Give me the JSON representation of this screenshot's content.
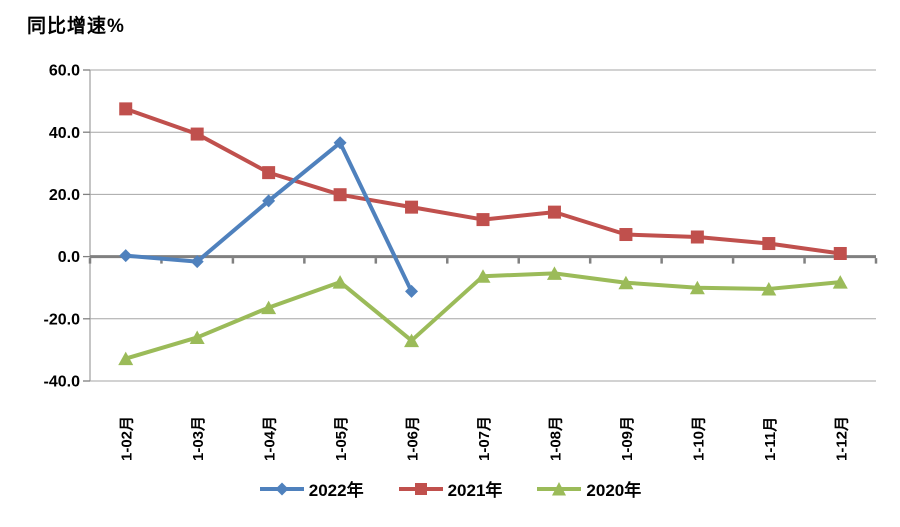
{
  "chart_data": {
    "type": "line",
    "title": "同比增速%",
    "categories": [
      "1-02月",
      "1-03月",
      "1-04月",
      "1-05月",
      "1-06月",
      "1-07月",
      "1-08月",
      "1-09月",
      "1-10月",
      "1-11月",
      "1-12月"
    ],
    "series": [
      {
        "name": "2022年",
        "color": "#4F81BD",
        "marker": "diamond",
        "values": [
          0.3,
          -1.6,
          17.9,
          36.6,
          -11.2,
          null,
          null,
          null,
          null,
          null,
          null
        ]
      },
      {
        "name": "2021年",
        "color": "#C0504D",
        "marker": "square",
        "values": [
          47.5,
          39.4,
          27.0,
          19.9,
          15.9,
          11.9,
          14.3,
          7.1,
          6.3,
          4.2,
          1.0
        ]
      },
      {
        "name": "2020年",
        "color": "#9BBB59",
        "marker": "triangle",
        "values": [
          -32.8,
          -26.0,
          -16.4,
          -8.2,
          -27.0,
          -6.3,
          -5.4,
          -8.4,
          -10.0,
          -10.4,
          -8.2
        ]
      }
    ],
    "y_axis": {
      "min": -40,
      "max": 60,
      "step": 20,
      "tick_labels": [
        "60.0",
        "40.0",
        "20.0",
        "0.0",
        "-20.0",
        "-40.0"
      ]
    },
    "xlabel": "",
    "ylabel": "同比增速%",
    "grid": true,
    "legend_position": "bottom",
    "draw_order": [
      1,
      2,
      0
    ],
    "colors": {
      "gridline": "#A6A6A6",
      "axis_line": "#A6A6A6",
      "zero_line": "#808080",
      "tick": "#808080",
      "text": "#000000"
    }
  }
}
